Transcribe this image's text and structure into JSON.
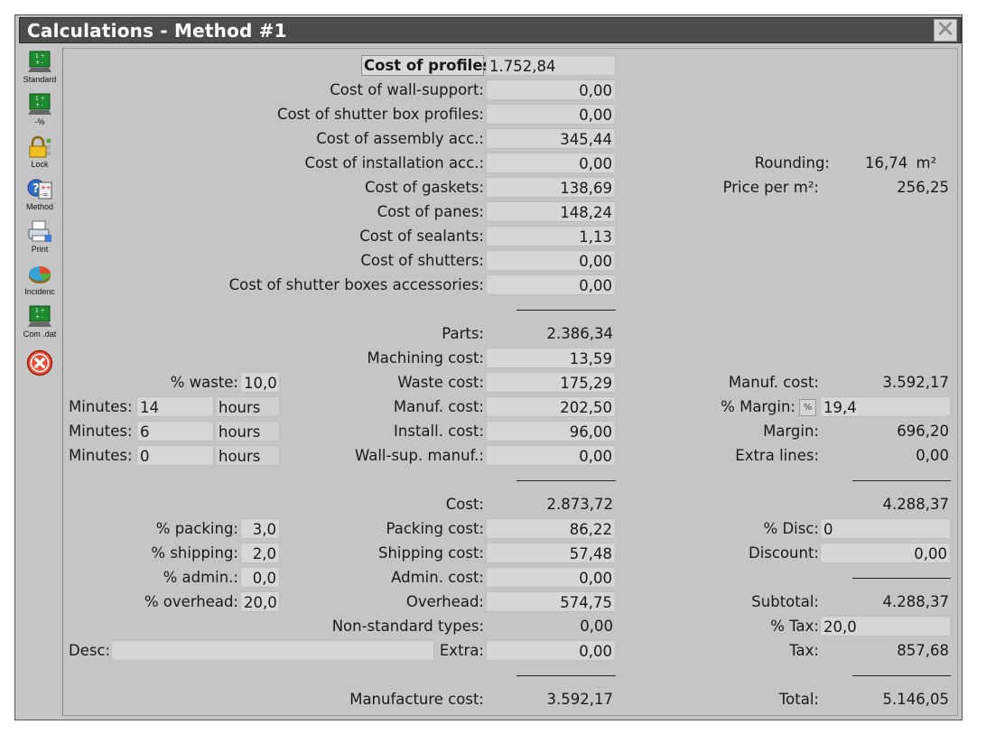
{
  "window": {
    "title": "Calculations - Method #1"
  },
  "toolbar": [
    {
      "label": "Standard",
      "icon": "standard-chart-icon"
    },
    {
      "label": "-%",
      "icon": "percent-chart-icon"
    },
    {
      "label": "Lock",
      "icon": "lock-icon"
    },
    {
      "label": "Method",
      "icon": "method-icon"
    },
    {
      "label": "Print",
      "icon": "print-icon"
    },
    {
      "label": "Incidenc",
      "icon": "incidence-pie-icon"
    },
    {
      "label": "Com .dat",
      "icon": "com-data-icon"
    },
    {
      "label": "",
      "icon": "close-red-icon"
    }
  ],
  "costs": {
    "profiles": {
      "label": "Cost of profiles:",
      "value": "1.752,84"
    },
    "wall_support": {
      "label": "Cost of wall-support:",
      "value": "0,00"
    },
    "shutter_box_profiles": {
      "label": "Cost of shutter box profiles:",
      "value": "0,00"
    },
    "assembly": {
      "label": "Cost of assembly acc.:",
      "value": "345,44"
    },
    "installation": {
      "label": "Cost of installation acc.:",
      "value": "0,00"
    },
    "gaskets": {
      "label": "Cost of gaskets:",
      "value": "138,69"
    },
    "panes": {
      "label": "Cost of panes:",
      "value": "148,24"
    },
    "sealants": {
      "label": "Cost of sealants:",
      "value": "1,13"
    },
    "shutters": {
      "label": "Cost of shutters:",
      "value": "0,00"
    },
    "shutter_box_acc": {
      "label": "Cost of shutter boxes accessories:",
      "value": "0,00"
    }
  },
  "parts": {
    "label": "Parts:",
    "value": "2.386,34"
  },
  "machining": {
    "label": "Machining cost:",
    "value": "13,59"
  },
  "waste": {
    "pct_label": "% waste:",
    "pct_value": "10,0",
    "label": "Waste cost:",
    "value": "175,29"
  },
  "manuf": {
    "label": "Manuf. cost:",
    "value": "202,50",
    "minutes_label": "Minutes:",
    "minutes": "14",
    "hours": "hours"
  },
  "install": {
    "label": "Install. cost:",
    "value": "96,00",
    "minutes_label": "Minutes:",
    "minutes": "6",
    "hours": "hours"
  },
  "wallsup": {
    "label": "Wall-sup. manuf.:",
    "value": "0,00",
    "minutes_label": "Minutes:",
    "minutes": "0",
    "hours": "hours"
  },
  "cost": {
    "label": "Cost:",
    "value": "2.873,72"
  },
  "packing": {
    "pct_label": "% packing:",
    "pct_value": "3,0",
    "label": "Packing cost:",
    "value": "86,22"
  },
  "shipping": {
    "pct_label": "% shipping:",
    "pct_value": "2,0",
    "label": "Shipping cost:",
    "value": "57,48"
  },
  "admin": {
    "pct_label": "% admin.:",
    "pct_value": "0,0",
    "label": "Admin. cost:",
    "value": "0,00"
  },
  "overhead": {
    "pct_label": "% overhead:",
    "pct_value": "20,0",
    "label": "Overhead:",
    "value": "574,75"
  },
  "nonstandard": {
    "label": "Non-standard types:",
    "value": "0,00"
  },
  "desc": {
    "label": "Desc:",
    "value": ""
  },
  "extra": {
    "label": "Extra:",
    "value": "0,00"
  },
  "manufacture_cost": {
    "label": "Manufacture cost:",
    "value": "3.592,17"
  },
  "right": {
    "rounding": {
      "label": "Rounding:",
      "value": "16,74",
      "unit": "m²"
    },
    "price_m2": {
      "label": "Price per m²:",
      "value": "256,25"
    },
    "manuf_cost": {
      "label": "Manuf. cost:",
      "value": "3.592,17"
    },
    "margin_pct": {
      "label": "% Margin:",
      "btn": "%",
      "value": "19,4"
    },
    "margin": {
      "label": "Margin:",
      "value": "696,20"
    },
    "extra_lines": {
      "label": "Extra lines:",
      "value": "0,00"
    },
    "sum1": {
      "value": "4.288,37"
    },
    "disc_pct": {
      "label": "% Disc:",
      "value": "0"
    },
    "discount": {
      "label": "Discount:",
      "value": "0,00"
    },
    "subtotal": {
      "label": "Subtotal:",
      "value": "4.288,37"
    },
    "tax_pct": {
      "label": "% Tax:",
      "value": "20,0"
    },
    "tax": {
      "label": "Tax:",
      "value": "857,68"
    },
    "total": {
      "label": "Total:",
      "value": "5.146,05"
    }
  },
  "colors": {
    "title_bg": "#4d4d4d",
    "panel_bg": "#c5c5c5",
    "field_bg": "#d6d6d6",
    "close_red": "#e8503a"
  }
}
